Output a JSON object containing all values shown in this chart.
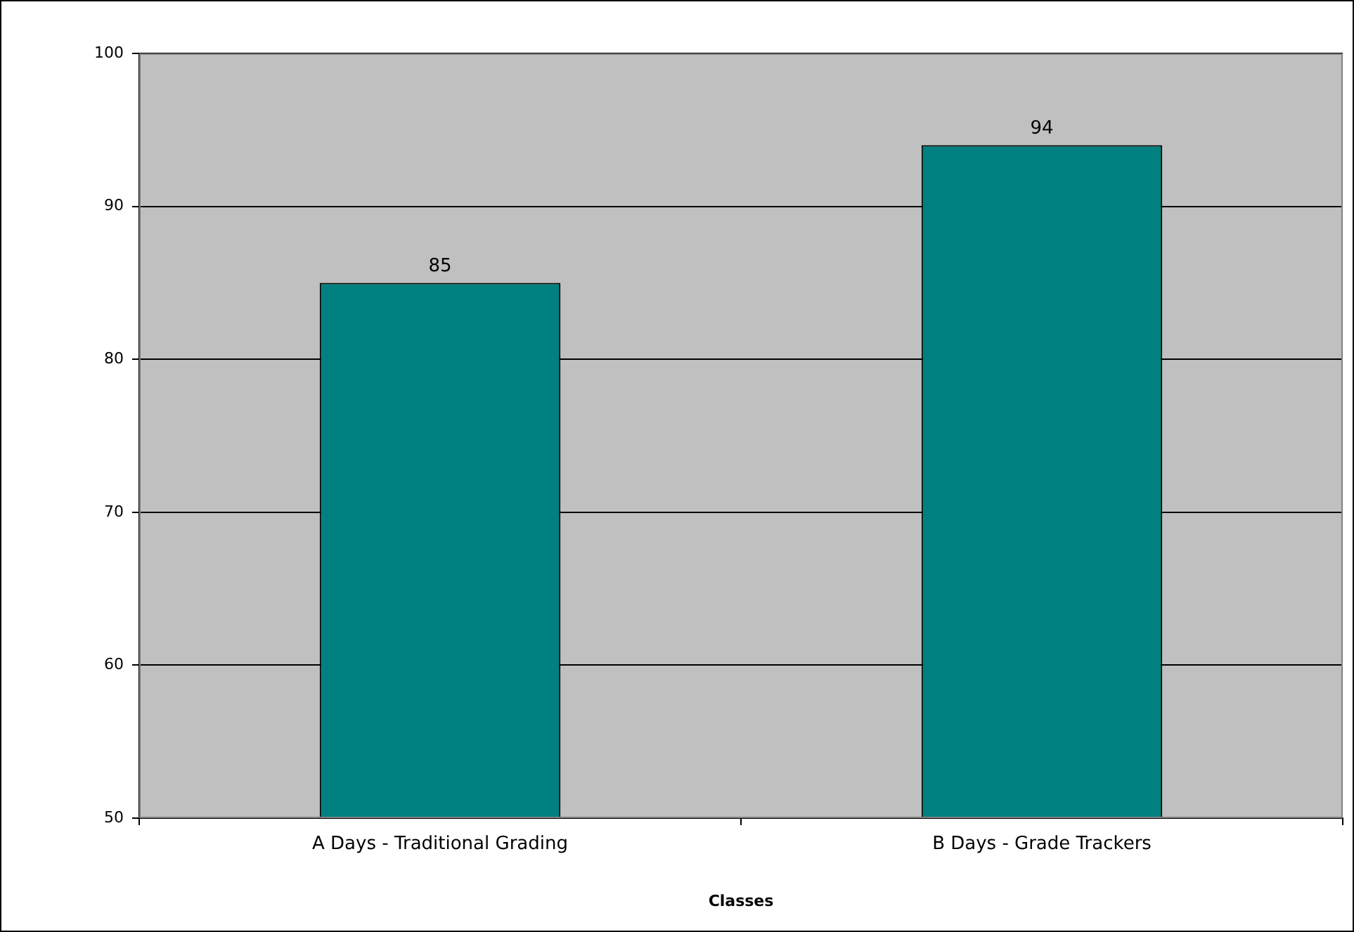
{
  "chart_data": {
    "type": "bar",
    "xlabel": "Classes",
    "categories": [
      "A Days - Traditional Grading",
      "B Days - Grade Trackers"
    ],
    "values": [
      85,
      94
    ],
    "color": "#008080",
    "ylim": [
      50,
      100
    ],
    "yticks": [
      50,
      60,
      70,
      80,
      90,
      100
    ],
    "grid": "y",
    "data_labels": true,
    "legend": false
  }
}
